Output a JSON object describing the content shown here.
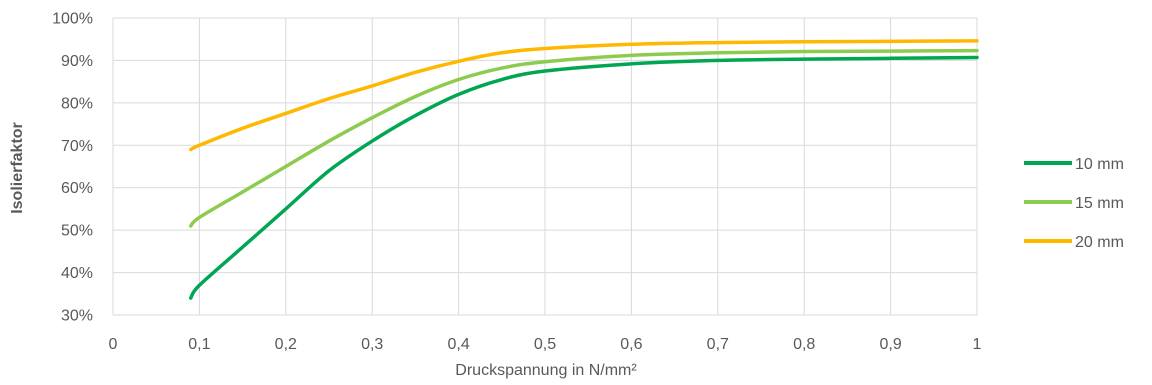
{
  "chart_data": {
    "type": "line",
    "title": "",
    "xlabel": "Druckspannung in N/mm²",
    "ylabel": "Isolierfaktor",
    "xlim": [
      0,
      1
    ],
    "ylim": [
      0.3,
      1.0
    ],
    "x_ticks": [
      "0",
      "0,1",
      "0,2",
      "0,3",
      "0,4",
      "0,5",
      "0,6",
      "0,7",
      "0,8",
      "0,9",
      "1"
    ],
    "y_ticks": [
      "30%",
      "40%",
      "50%",
      "60%",
      "70%",
      "80%",
      "90%",
      "100%"
    ],
    "grid": true,
    "legend_position": "right",
    "series": [
      {
        "name": "10 mm",
        "color": "#00A651",
        "x": [
          0.09,
          0.1,
          0.15,
          0.2,
          0.25,
          0.3,
          0.35,
          0.4,
          0.45,
          0.5,
          0.6,
          0.7,
          0.8,
          0.9,
          1.0
        ],
        "y": [
          0.34,
          0.37,
          0.46,
          0.55,
          0.64,
          0.71,
          0.77,
          0.82,
          0.855,
          0.875,
          0.892,
          0.9,
          0.903,
          0.905,
          0.907
        ]
      },
      {
        "name": "15 mm",
        "color": "#8CCB4E",
        "x": [
          0.09,
          0.1,
          0.15,
          0.2,
          0.25,
          0.3,
          0.35,
          0.4,
          0.45,
          0.5,
          0.6,
          0.7,
          0.8,
          0.9,
          1.0
        ],
        "y": [
          0.51,
          0.53,
          0.59,
          0.65,
          0.71,
          0.765,
          0.815,
          0.855,
          0.882,
          0.897,
          0.912,
          0.918,
          0.921,
          0.922,
          0.923
        ]
      },
      {
        "name": "20 mm",
        "color": "#FFB800",
        "x": [
          0.09,
          0.1,
          0.15,
          0.2,
          0.25,
          0.3,
          0.35,
          0.4,
          0.45,
          0.5,
          0.6,
          0.7,
          0.8,
          0.9,
          1.0
        ],
        "y": [
          0.69,
          0.7,
          0.74,
          0.775,
          0.81,
          0.84,
          0.872,
          0.898,
          0.918,
          0.928,
          0.938,
          0.942,
          0.944,
          0.945,
          0.946
        ]
      }
    ]
  }
}
